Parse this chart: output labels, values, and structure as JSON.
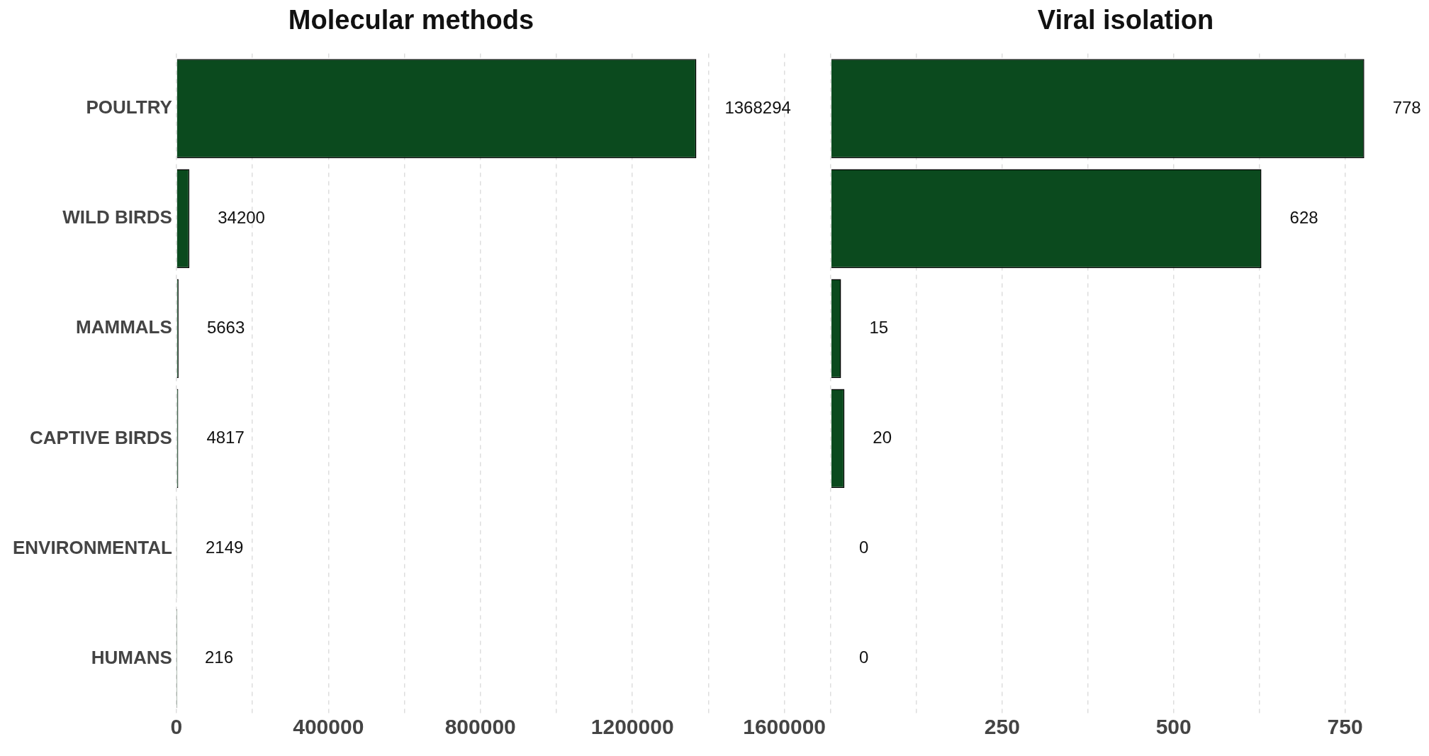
{
  "chart_data": [
    {
      "type": "bar",
      "title": "Molecular methods",
      "orientation": "horizontal",
      "categories": [
        "POULTRY",
        "WILD BIRDS",
        "MAMMALS",
        "CAPTIVE BIRDS",
        "ENVIRONMENTAL",
        "HUMANS"
      ],
      "values": [
        1368294,
        34200,
        5663,
        4817,
        2149,
        216
      ],
      "color": "#0b4a1e",
      "data_labels": true,
      "xlim": [
        0,
        1600000
      ],
      "xticks": [
        0,
        {
          "value": 200000,
          "label": null
        },
        400000,
        {
          "value": 600000,
          "label": null
        },
        800000,
        {
          "value": 1000000,
          "label": null
        },
        1200000,
        {
          "value": 1400000,
          "label": null
        },
        1600000
      ],
      "grid": "x",
      "legend": false
    },
    {
      "type": "bar",
      "title": "Viral isolation",
      "orientation": "horizontal",
      "categories": [
        null,
        null,
        null,
        null,
        null,
        null
      ],
      "values": [
        778,
        628,
        15,
        20,
        0,
        0
      ],
      "color": "#0b4a1e",
      "data_labels": true,
      "xlim": [
        0,
        860
      ],
      "xticks": [
        {
          "value": 0,
          "label": null
        },
        {
          "value": 125,
          "label": null
        },
        250,
        {
          "value": 375,
          "label": null
        },
        500,
        {
          "value": 625,
          "label": null
        },
        750
      ],
      "grid": "x",
      "legend": false,
      "tick_labels": "x"
    }
  ]
}
